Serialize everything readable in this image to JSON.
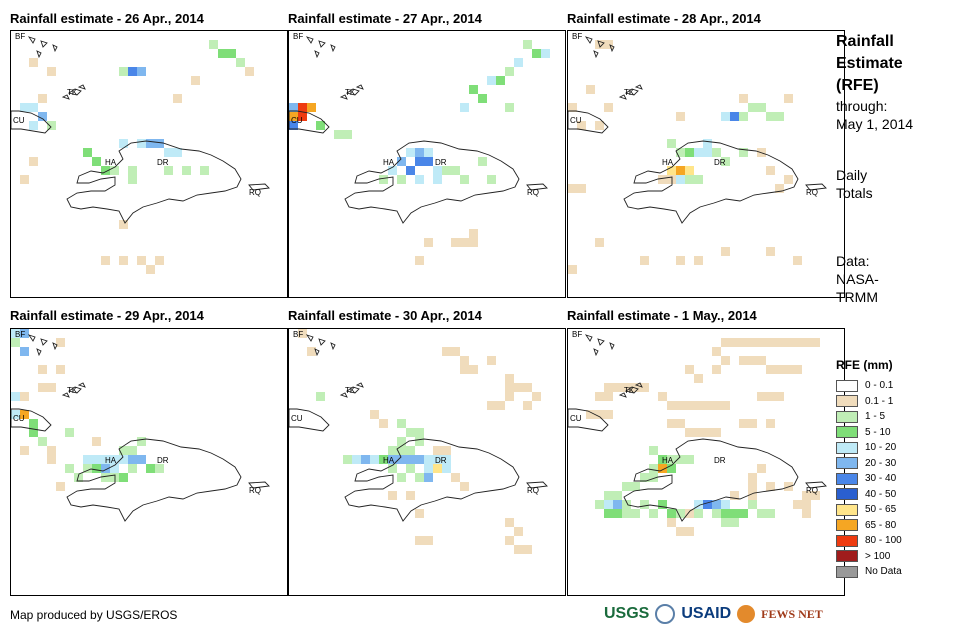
{
  "panels": [
    {
      "title": "Rainfall estimate - 26 Apr., 2014",
      "labels": [
        "BF",
        "TK",
        "CU",
        "HA",
        "DR",
        "RQ"
      ]
    },
    {
      "title": "Rainfall estimate - 27 Apr., 2014",
      "labels": [
        "BF",
        "TK",
        "CU",
        "HA",
        "DR",
        "RQ"
      ]
    },
    {
      "title": "Rainfall estimate - 28 Apr., 2014",
      "labels": [
        "BF",
        "TK",
        "CU",
        "HA",
        "DR",
        "RQ"
      ]
    },
    {
      "title": "Rainfall estimate - 29 Apr., 2014",
      "labels": [
        "BF",
        "TK",
        "CU",
        "HA",
        "DR",
        "RQ"
      ]
    },
    {
      "title": "Rainfall estimate - 30 Apr., 2014",
      "labels": [
        "BF",
        "TK",
        "CU",
        "HA",
        "DR",
        "RQ"
      ]
    },
    {
      "title": "Rainfall estimate - 1 May., 2014",
      "labels": [
        "BF",
        "TK",
        "CU",
        "HA",
        "DR",
        "RQ"
      ]
    }
  ],
  "side": {
    "title_lines": [
      "Rainfall",
      "Estimate",
      "(RFE)"
    ],
    "through_label": "through:",
    "through_date": "May 1, 2014",
    "totals_lines": [
      "Daily",
      "Totals"
    ],
    "data_lines": [
      "Data:",
      "NASA-",
      "TRMM"
    ]
  },
  "legend": {
    "title": "RFE (mm)",
    "items": [
      {
        "label": "0 - 0.1",
        "color": "#ffffff"
      },
      {
        "label": "0.1 - 1",
        "color": "#f0dcbc"
      },
      {
        "label": "1 - 5",
        "color": "#c0eeb6"
      },
      {
        "label": "5 - 10",
        "color": "#7fde78"
      },
      {
        "label": "10 - 20",
        "color": "#bfeaf7"
      },
      {
        "label": "20 - 30",
        "color": "#7fb7ef"
      },
      {
        "label": "30 - 40",
        "color": "#4a86e8"
      },
      {
        "label": "40 - 50",
        "color": "#2a5fcf"
      },
      {
        "label": "50 - 65",
        "color": "#ffe58a"
      },
      {
        "label": "65 - 80",
        "color": "#f5a623"
      },
      {
        "label": "80 - 100",
        "color": "#ee3b10"
      },
      {
        "label": "> 100",
        "color": "#a01c1c"
      },
      {
        "label": "No Data",
        "color": "#999999"
      }
    ]
  },
  "footer": {
    "credit": "Map produced by USGS/EROS"
  },
  "logos": {
    "usgs": "USGS",
    "usaid": "USAID",
    "fews": "FEWS NET"
  }
}
